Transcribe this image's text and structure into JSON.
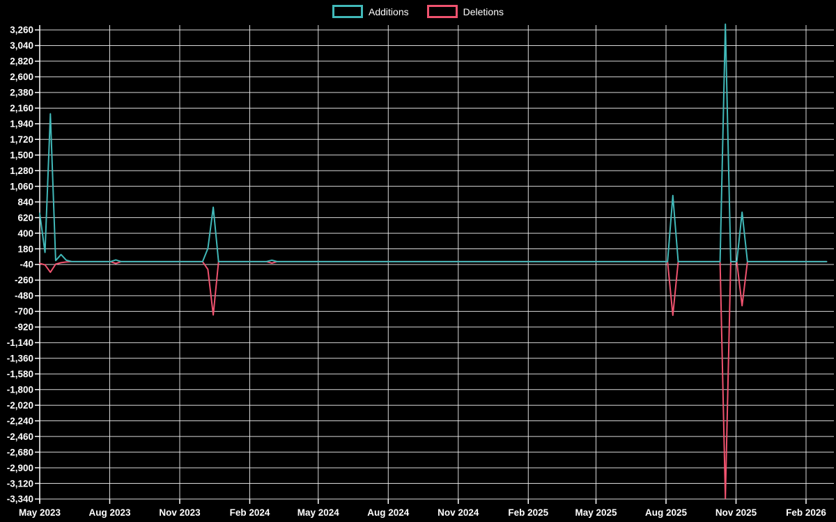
{
  "legend": {
    "items": [
      {
        "label": "Additions",
        "color": "#41b9b9"
      },
      {
        "label": "Deletions",
        "color": "#f0536f"
      }
    ]
  },
  "chart_data": {
    "type": "line",
    "title": "",
    "background": "#000000",
    "grid": true,
    "grid_color": "#f2f2f2",
    "axis_color": "#ffffff",
    "label_color": "#ffffff",
    "legend_position": "top-center",
    "ylim": [
      -3340,
      3260
    ],
    "y_step": 220,
    "y_ticks": [
      "3,260",
      "3,040",
      "2,820",
      "2,600",
      "2,380",
      "2,160",
      "1,940",
      "1,720",
      "1,500",
      "1,280",
      "1,060",
      "840",
      "620",
      "400",
      "180",
      "-40",
      "-260",
      "-480",
      "-700",
      "-920",
      "-1,140",
      "-1,360",
      "-1,580",
      "-1,800",
      "-2,020",
      "-2,240",
      "-2,460",
      "-2,680",
      "-2,900",
      "-3,120",
      "-3,340"
    ],
    "x_ticks": [
      {
        "label": "May 2023",
        "date": "2023-05-01"
      },
      {
        "label": "Aug 2023",
        "date": "2023-08-01"
      },
      {
        "label": "Nov 2023",
        "date": "2023-11-01"
      },
      {
        "label": "Feb 2024",
        "date": "2024-02-01"
      },
      {
        "label": "May 2024",
        "date": "2024-05-01"
      },
      {
        "label": "Aug 2024",
        "date": "2024-08-01"
      },
      {
        "label": "Nov 2024",
        "date": "2024-11-01"
      },
      {
        "label": "Feb 2025",
        "date": "2025-02-01"
      },
      {
        "label": "May 2025",
        "date": "2025-05-01"
      },
      {
        "label": "Aug 2025",
        "date": "2025-08-01"
      },
      {
        "label": "Nov 2025",
        "date": "2025-11-01"
      },
      {
        "label": "Feb 2026",
        "date": "2026-02-01"
      }
    ],
    "series": [
      {
        "name": "Additions",
        "key": "add",
        "color": "#41b9b9"
      },
      {
        "name": "Deletions",
        "key": "del",
        "color": "#f0536f"
      }
    ],
    "points": [
      {
        "date": "2023-05-01",
        "add": 680,
        "del": -25
      },
      {
        "date": "2023-05-08",
        "add": 130,
        "del": -45
      },
      {
        "date": "2023-05-15",
        "add": 2080,
        "del": -150
      },
      {
        "date": "2023-05-22",
        "add": 15,
        "del": -35
      },
      {
        "date": "2023-05-29",
        "add": 100,
        "del": -15
      },
      {
        "date": "2023-06-05",
        "add": 20,
        "del": -5
      },
      {
        "date": "2023-06-12",
        "add": 0,
        "del": 0
      },
      {
        "date": "2023-08-02",
        "add": 0,
        "del": 0
      },
      {
        "date": "2023-08-09",
        "add": 25,
        "del": -25
      },
      {
        "date": "2023-08-16",
        "add": 0,
        "del": 0
      },
      {
        "date": "2023-12-01",
        "add": 0,
        "del": 0
      },
      {
        "date": "2023-12-08",
        "add": 185,
        "del": -110
      },
      {
        "date": "2023-12-15",
        "add": 765,
        "del": -750
      },
      {
        "date": "2023-12-22",
        "add": 0,
        "del": 0
      },
      {
        "date": "2024-02-23",
        "add": 0,
        "del": 0
      },
      {
        "date": "2024-03-01",
        "add": 20,
        "del": -20
      },
      {
        "date": "2024-03-08",
        "add": 0,
        "del": 0
      },
      {
        "date": "2025-08-03",
        "add": 0,
        "del": 0
      },
      {
        "date": "2025-08-10",
        "add": 930,
        "del": -755
      },
      {
        "date": "2025-08-17",
        "add": 0,
        "del": 0
      },
      {
        "date": "2025-10-11",
        "add": 0,
        "del": 0
      },
      {
        "date": "2025-10-18",
        "add": 3340,
        "del": -3330
      },
      {
        "date": "2025-10-25",
        "add": 0,
        "del": 0
      },
      {
        "date": "2025-11-02",
        "add": 0,
        "del": 0
      },
      {
        "date": "2025-11-09",
        "add": 695,
        "del": -620
      },
      {
        "date": "2025-11-16",
        "add": 0,
        "del": 0
      },
      {
        "date": "2026-02-28",
        "add": 0,
        "del": 0
      }
    ]
  }
}
